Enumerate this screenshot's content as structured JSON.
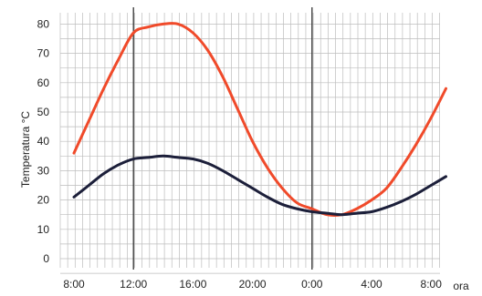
{
  "chart_data": {
    "type": "line",
    "xlabel": "ora",
    "ylabel": "Temperatura °C",
    "x_ticks": [
      "8:00",
      "12:00",
      "16:00",
      "20:00",
      "0:00",
      "4:00",
      "8:00"
    ],
    "y_ticks": [
      "0",
      "10",
      "20",
      "30",
      "40",
      "50",
      "60",
      "70",
      "80"
    ],
    "ylim": [
      0,
      85
    ],
    "grid": true,
    "vertical_markers": [
      "12:00",
      "0:00"
    ],
    "series": [
      {
        "color": "#f04a2a",
        "x": [
          "8:00",
          "9:00",
          "10:00",
          "11:00",
          "12:00",
          "13:00",
          "14:00",
          "15:00",
          "16:00",
          "17:00",
          "18:00",
          "19:00",
          "20:00",
          "21:00",
          "22:00",
          "23:00",
          "0:00",
          "1:00",
          "2:00",
          "3:00",
          "4:00",
          "5:00",
          "6:00",
          "7:00",
          "8:00",
          "9:00"
        ],
        "y": [
          36,
          47,
          58,
          68,
          77,
          79,
          80,
          80,
          77,
          71,
          62,
          51,
          40,
          31,
          24,
          19,
          17,
          15,
          15,
          17,
          20,
          24,
          31,
          39,
          48,
          58
        ]
      },
      {
        "color": "#1c1f3a",
        "x": [
          "8:00",
          "9:00",
          "10:00",
          "11:00",
          "12:00",
          "13:00",
          "14:00",
          "15:00",
          "16:00",
          "17:00",
          "18:00",
          "19:00",
          "20:00",
          "21:00",
          "22:00",
          "23:00",
          "0:00",
          "1:00",
          "2:00",
          "3:00",
          "4:00",
          "5:00",
          "6:00",
          "7:00",
          "8:00",
          "9:00"
        ],
        "y": [
          21,
          25,
          29,
          32,
          34,
          34.5,
          35,
          34.5,
          34,
          32.5,
          30,
          27,
          24,
          21,
          18.5,
          17,
          16,
          15.5,
          15,
          15.5,
          16,
          17.5,
          19.5,
          22,
          25,
          28
        ]
      }
    ]
  }
}
